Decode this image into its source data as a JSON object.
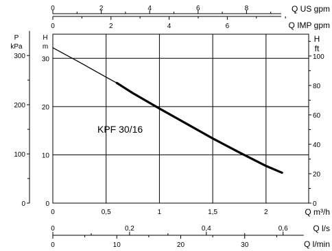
{
  "chart_data": {
    "type": "line",
    "title": "",
    "series": [
      {
        "name": "KPF 30/16",
        "x": [
          0,
          0.25,
          0.5,
          0.6,
          0.75,
          1.0,
          1.25,
          1.5,
          1.75,
          2.0,
          2.15
        ],
        "y": [
          32.2,
          29.2,
          26.1,
          24.9,
          22.8,
          19.6,
          16.5,
          13.4,
          10.5,
          7.7,
          6.3
        ],
        "bold_from_x": 0.6
      }
    ],
    "xlim": [
      0,
      2.4
    ],
    "ylim": [
      0,
      35
    ],
    "grid": true,
    "main_x": {
      "label": "Q m³/h",
      "ticks": [
        0,
        0.5,
        1,
        1.5,
        2
      ],
      "tick_labels": [
        "0",
        "0,5",
        "1",
        "1,5",
        "2"
      ]
    },
    "left_y_m": {
      "unit_top": "H",
      "unit_bottom": "m",
      "ticks": [
        0,
        10,
        20,
        30
      ],
      "tick_labels": [
        "0",
        "10",
        "20",
        "30"
      ]
    },
    "left_y_kpa": {
      "unit_top": "P",
      "unit_bottom": "kPa",
      "ticks": [
        0,
        100,
        200,
        300
      ],
      "tick_labels": [
        "0",
        "100",
        "200",
        "300"
      ],
      "per_m": 9.81
    },
    "right_y_ft": {
      "unit_top": "H",
      "unit_bottom": "ft",
      "ticks": [
        0,
        20,
        40,
        60,
        80,
        100
      ],
      "tick_labels": [
        "0",
        "20",
        "40",
        "60",
        "80",
        "100"
      ],
      "per_m": 3.2808
    },
    "top_us_gpm": {
      "label": "Q US gpm",
      "ticks": [
        0,
        2,
        4,
        6,
        8
      ],
      "tick_labels": [
        "0",
        "2",
        "4",
        "6",
        "8"
      ],
      "per_m3h": 4.4029
    },
    "top_imp_gpm": {
      "label": "Q IMP gpm",
      "ticks": [
        0,
        2,
        4,
        6
      ],
      "tick_labels": [
        "0",
        "2",
        "4",
        "6"
      ],
      "per_m3h": 3.6662
    },
    "bottom_ls": {
      "label": "Q l/s",
      "ticks": [
        0,
        0.2,
        0.4,
        0.6
      ],
      "tick_labels": [
        "0",
        "0,2",
        "0,4",
        "0,6"
      ],
      "per_m3h": 0.27778
    },
    "bottom_lmin": {
      "label": "Q l/min",
      "ticks": [
        0,
        10,
        20,
        30
      ],
      "tick_labels": [
        "0",
        "10",
        "20",
        "30"
      ],
      "per_m3h": 16.6667
    }
  }
}
